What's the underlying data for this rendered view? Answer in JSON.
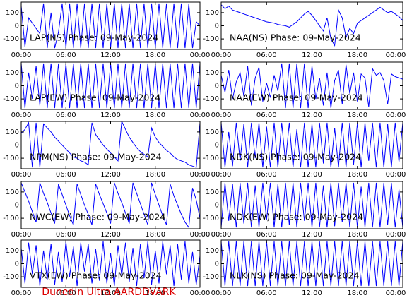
{
  "charts": [
    {
      "type": "line",
      "title": "LAP(NS) Phase: 09-May-2024",
      "color": "#0000ff",
      "xlim": [
        0,
        24
      ],
      "ylim": [
        -180,
        180
      ],
      "xticks": [
        {
          "value": 0,
          "label": "00:00"
        },
        {
          "value": 6,
          "label": "06:00"
        },
        {
          "value": 12,
          "label": "12:00"
        },
        {
          "value": 18,
          "label": "18:00"
        },
        {
          "value": 24,
          "label": "00:00"
        }
      ],
      "yticks": [
        -100,
        0,
        100
      ],
      "x": [
        0,
        0.5,
        1,
        1.5,
        2,
        2.5,
        3,
        3.5,
        4,
        4.5,
        5,
        5.5,
        6,
        6.5,
        7,
        7.5,
        8,
        8.5,
        9,
        9.5,
        10,
        10.5,
        11,
        11.5,
        12,
        12.5,
        13,
        13.5,
        14,
        14.5,
        15,
        15.5,
        16,
        16.5,
        17,
        17.5,
        18,
        18.5,
        19,
        19.5,
        20,
        20.5,
        21,
        21.5,
        22,
        22.5,
        23,
        23.5,
        24
      ],
      "values": [
        150,
        -160,
        60,
        20,
        -20,
        -60,
        170,
        -170,
        100,
        -170,
        -50,
        170,
        -170,
        170,
        -170,
        170,
        -170,
        170,
        -170,
        170,
        -170,
        170,
        -170,
        170,
        -170,
        170,
        -170,
        170,
        -170,
        170,
        -170,
        170,
        -170,
        170,
        -170,
        170,
        -170,
        170,
        -170,
        170,
        -170,
        170,
        -170,
        170,
        -170,
        170,
        -170,
        30,
        0
      ]
    },
    {
      "type": "line",
      "title": "NAA(NS) Phase: 09-May-2024",
      "color": "#0000ff",
      "xlim": [
        0,
        24
      ],
      "ylim": [
        -180,
        180
      ],
      "xticks": [
        {
          "value": 0,
          "label": "00:00"
        },
        {
          "value": 6,
          "label": "06:00"
        },
        {
          "value": 12,
          "label": "12:00"
        },
        {
          "value": 18,
          "label": "18:00"
        },
        {
          "value": 24,
          "label": "00:00"
        }
      ],
      "yticks": [
        -100,
        0,
        100
      ],
      "x": [
        0,
        0.5,
        1,
        1.5,
        2,
        2.5,
        3,
        3.5,
        4,
        4.5,
        5,
        5.5,
        6,
        6.5,
        7,
        7.5,
        8,
        8.5,
        9,
        9.5,
        10,
        10.5,
        11,
        11.5,
        12,
        12.5,
        13,
        13.5,
        14,
        14.5,
        15,
        15.5,
        16,
        16.5,
        17,
        17.5,
        18,
        18.5,
        19,
        19.5,
        20,
        20.5,
        21,
        21.5,
        22,
        22.5,
        23,
        23.5,
        24
      ],
      "values": [
        160,
        130,
        150,
        120,
        110,
        100,
        90,
        80,
        70,
        60,
        50,
        40,
        30,
        25,
        20,
        10,
        5,
        0,
        -10,
        10,
        30,
        60,
        90,
        110,
        80,
        40,
        0,
        -40,
        60,
        -100,
        -150,
        120,
        60,
        -90,
        -20,
        -60,
        20,
        40,
        60,
        80,
        100,
        120,
        140,
        120,
        100,
        110,
        90,
        70,
        40
      ]
    },
    {
      "type": "line",
      "title": "LAP(EW) Phase: 09-May-2024",
      "color": "#0000ff",
      "xlim": [
        0,
        24
      ],
      "ylim": [
        -180,
        180
      ],
      "xticks": [
        {
          "value": 0,
          "label": "00:00"
        },
        {
          "value": 6,
          "label": "06:00"
        },
        {
          "value": 12,
          "label": "12:00"
        },
        {
          "value": 18,
          "label": "18:00"
        },
        {
          "value": 24,
          "label": "00:00"
        }
      ],
      "yticks": [
        -100,
        0,
        100
      ],
      "x": [
        0,
        0.5,
        1,
        1.5,
        2,
        2.5,
        3,
        3.5,
        4,
        4.5,
        5,
        5.5,
        6,
        6.5,
        7,
        7.5,
        8,
        8.5,
        9,
        9.5,
        10,
        10.5,
        11,
        11.5,
        12,
        12.5,
        13,
        13.5,
        14,
        14.5,
        15,
        15.5,
        16,
        16.5,
        17,
        17.5,
        18,
        18.5,
        19,
        19.5,
        20,
        20.5,
        21,
        21.5,
        22,
        22.5,
        23,
        23.5,
        24
      ],
      "values": [
        170,
        -170,
        100,
        -100,
        150,
        -150,
        170,
        -170,
        170,
        -170,
        170,
        -170,
        170,
        -170,
        170,
        -170,
        170,
        -170,
        170,
        -170,
        170,
        -170,
        170,
        -170,
        170,
        -170,
        170,
        -170,
        170,
        -170,
        170,
        -170,
        170,
        -170,
        170,
        -170,
        170,
        -170,
        170,
        -170,
        170,
        -170,
        170,
        -170,
        170,
        -170,
        170,
        -170,
        170
      ]
    },
    {
      "type": "line",
      "title": "NAA(EW) Phase: 09-May-2024",
      "color": "#0000ff",
      "xlim": [
        0,
        24
      ],
      "ylim": [
        -180,
        180
      ],
      "xticks": [
        {
          "value": 0,
          "label": "00:00"
        },
        {
          "value": 6,
          "label": "06:00"
        },
        {
          "value": 12,
          "label": "12:00"
        },
        {
          "value": 18,
          "label": "18:00"
        },
        {
          "value": 24,
          "label": "00:00"
        }
      ],
      "yticks": [
        -100,
        0,
        100
      ],
      "x": [
        0,
        0.5,
        1,
        1.5,
        2,
        2.5,
        3,
        3.5,
        4,
        4.5,
        5,
        5.5,
        6,
        6.5,
        7,
        7.5,
        8,
        8.5,
        9,
        9.5,
        10,
        10.5,
        11,
        11.5,
        12,
        12.5,
        13,
        13.5,
        14,
        14.5,
        15,
        15.5,
        16,
        16.5,
        17,
        17.5,
        18,
        18.5,
        19,
        19.5,
        20,
        20.5,
        21,
        21.5,
        22,
        22.5,
        23,
        23.5,
        24
      ],
      "values": [
        80,
        -50,
        120,
        -100,
        30,
        100,
        -80,
        150,
        -150,
        60,
        140,
        -120,
        20,
        -90,
        80,
        -40,
        170,
        -170,
        170,
        -170,
        170,
        -170,
        170,
        -170,
        150,
        -100,
        60,
        -150,
        100,
        -170,
        40,
        120,
        -140,
        160,
        -60,
        100,
        -120,
        90,
        60,
        -160,
        130,
        80,
        100,
        40,
        -140,
        90,
        70,
        60,
        50
      ]
    },
    {
      "type": "line",
      "title": "NPM(NS) Phase: 09-May-2024",
      "color": "#0000ff",
      "xlim": [
        0,
        24
      ],
      "ylim": [
        -180,
        180
      ],
      "xticks": [
        {
          "value": 0,
          "label": "00:00"
        },
        {
          "value": 6,
          "label": "06:00"
        },
        {
          "value": 12,
          "label": "12:00"
        },
        {
          "value": 18,
          "label": "18:00"
        },
        {
          "value": 24,
          "label": "00:00"
        }
      ],
      "yticks": [
        -100,
        0,
        100
      ],
      "x": [
        0,
        0.5,
        1,
        1.5,
        2,
        2.5,
        3,
        3.5,
        4,
        4.5,
        5,
        5.5,
        6,
        6.5,
        7,
        7.5,
        8,
        8.5,
        9,
        9.5,
        10,
        10.5,
        11,
        11.5,
        12,
        12.5,
        13,
        13.5,
        14,
        14.5,
        15,
        15.5,
        16,
        16.5,
        17,
        17.5,
        18,
        18.5,
        19,
        19.5,
        20,
        20.5,
        21,
        21.5,
        22,
        22.5,
        23,
        23.5,
        24
      ],
      "values": [
        90,
        120,
        170,
        -170,
        170,
        -170,
        160,
        130,
        100,
        60,
        30,
        0,
        -30,
        -60,
        -90,
        -100,
        -120,
        -130,
        -150,
        170,
        80,
        40,
        0,
        -30,
        -60,
        -90,
        -120,
        180,
        120,
        60,
        20,
        -20,
        -50,
        -70,
        -90,
        130,
        60,
        20,
        -10,
        -40,
        -60,
        -90,
        -110,
        -120,
        -130,
        -150,
        -160,
        -170,
        170
      ]
    },
    {
      "type": "line",
      "title": "NDK(NS) Phase: 09-May-2024",
      "color": "#0000ff",
      "xlim": [
        0,
        24
      ],
      "ylim": [
        -180,
        180
      ],
      "xticks": [
        {
          "value": 0,
          "label": "00:00"
        },
        {
          "value": 6,
          "label": "06:00"
        },
        {
          "value": 12,
          "label": "12:00"
        },
        {
          "value": 18,
          "label": "18:00"
        },
        {
          "value": 24,
          "label": "00:00"
        }
      ],
      "yticks": [
        -100,
        0,
        100
      ],
      "x": [
        0,
        0.5,
        1,
        1.5,
        2,
        2.5,
        3,
        3.5,
        4,
        4.5,
        5,
        5.5,
        6,
        6.5,
        7,
        7.5,
        8,
        8.5,
        9,
        9.5,
        10,
        10.5,
        11,
        11.5,
        12,
        12.5,
        13,
        13.5,
        14,
        14.5,
        15,
        15.5,
        16,
        16.5,
        17,
        17.5,
        18,
        18.5,
        19,
        19.5,
        20,
        20.5,
        21,
        21.5,
        22,
        22.5,
        23,
        23.5,
        24
      ],
      "values": [
        170,
        -170,
        100,
        -160,
        170,
        -120,
        160,
        -170,
        170,
        -100,
        170,
        -170,
        140,
        -170,
        170,
        -170,
        170,
        -130,
        170,
        -170,
        120,
        -170,
        170,
        -170,
        160,
        -170,
        170,
        -140,
        170,
        -170,
        130,
        -170,
        170,
        -170,
        170,
        -150,
        170,
        -170,
        170,
        -120,
        170,
        -170,
        170,
        -170,
        160,
        -170,
        170,
        -130,
        170
      ]
    },
    {
      "type": "line",
      "title": "NWC(EW) Phase: 09-May-2024",
      "color": "#0000ff",
      "xlim": [
        0,
        24
      ],
      "ylim": [
        -180,
        180
      ],
      "xticks": [
        {
          "value": 0,
          "label": "00:00"
        },
        {
          "value": 6,
          "label": "06:00"
        },
        {
          "value": 12,
          "label": "12:00"
        },
        {
          "value": 18,
          "label": "18:00"
        },
        {
          "value": 24,
          "label": "00:00"
        }
      ],
      "yticks": [
        -100,
        0,
        100
      ],
      "x": [
        0,
        0.5,
        1,
        1.5,
        2,
        2.5,
        3,
        3.5,
        4,
        4.5,
        5,
        5.5,
        6,
        6.5,
        7,
        7.5,
        8,
        8.5,
        9,
        9.5,
        10,
        10.5,
        11,
        11.5,
        12,
        12.5,
        13,
        13.5,
        14,
        14.5,
        15,
        15.5,
        16,
        16.5,
        17,
        17.5,
        18,
        18.5,
        19,
        19.5,
        20,
        20.5,
        21,
        21.5,
        22,
        22.5,
        23,
        23.5,
        24
      ],
      "values": [
        170,
        100,
        30,
        -50,
        -130,
        170,
        90,
        20,
        -60,
        -140,
        160,
        80,
        0,
        -80,
        -150,
        160,
        80,
        0,
        -70,
        -150,
        160,
        80,
        10,
        -60,
        -140,
        170,
        90,
        20,
        -60,
        -140,
        170,
        90,
        10,
        -70,
        -150,
        170,
        80,
        0,
        -80,
        -150,
        160,
        70,
        0,
        -70,
        -130,
        -170,
        130,
        40,
        -100
      ]
    },
    {
      "type": "line",
      "title": "NDK(EW) Phase: 09-May-2024",
      "color": "#0000ff",
      "xlim": [
        0,
        24
      ],
      "ylim": [
        -180,
        180
      ],
      "xticks": [
        {
          "value": 0,
          "label": "00:00"
        },
        {
          "value": 6,
          "label": "06:00"
        },
        {
          "value": 12,
          "label": "12:00"
        },
        {
          "value": 18,
          "label": "18:00"
        },
        {
          "value": 24,
          "label": "00:00"
        }
      ],
      "yticks": [
        -100,
        0,
        100
      ],
      "x": [
        0,
        0.5,
        1,
        1.5,
        2,
        2.5,
        3,
        3.5,
        4,
        4.5,
        5,
        5.5,
        6,
        6.5,
        7,
        7.5,
        8,
        8.5,
        9,
        9.5,
        10,
        10.5,
        11,
        11.5,
        12,
        12.5,
        13,
        13.5,
        14,
        14.5,
        15,
        15.5,
        16,
        16.5,
        17,
        17.5,
        18,
        18.5,
        19,
        19.5,
        20,
        20.5,
        21,
        21.5,
        22,
        22.5,
        23,
        23.5,
        24
      ],
      "values": [
        -170,
        170,
        -120,
        160,
        -170,
        170,
        -140,
        170,
        -170,
        150,
        -170,
        170,
        -110,
        170,
        -170,
        160,
        -170,
        170,
        -150,
        170,
        -170,
        170,
        -120,
        170,
        -170,
        170,
        -170,
        150,
        -170,
        170,
        -160,
        170,
        -130,
        170,
        -170,
        170,
        -170,
        140,
        -170,
        170,
        -170,
        170,
        -170,
        170,
        -150,
        170,
        -170,
        120,
        -170
      ]
    },
    {
      "type": "line",
      "title": "VTX(EW) Phase: 09-May-2024",
      "color": "#0000ff",
      "xlim": [
        0,
        24
      ],
      "ylim": [
        -180,
        180
      ],
      "xticks": [
        {
          "value": 0,
          "label": "00:00"
        },
        {
          "value": 6,
          "label": "06:00"
        },
        {
          "value": 12,
          "label": "12:00"
        },
        {
          "value": 18,
          "label": "18:00"
        },
        {
          "value": 24,
          "label": "00:00"
        }
      ],
      "yticks": [
        -100,
        0,
        100
      ],
      "x": [
        0,
        0.5,
        1,
        1.5,
        2,
        2.5,
        3,
        3.5,
        4,
        4.5,
        5,
        5.5,
        6,
        6.5,
        7,
        7.5,
        8,
        8.5,
        9,
        9.5,
        10,
        10.5,
        11,
        11.5,
        12,
        12.5,
        13,
        13.5,
        14,
        14.5,
        15,
        15.5,
        16,
        16.5,
        17,
        17.5,
        18,
        18.5,
        19,
        19.5,
        20,
        20.5,
        21,
        21.5,
        22,
        22.5,
        23,
        23.5,
        24
      ],
      "values": [
        120,
        -150,
        160,
        -80,
        140,
        -170,
        100,
        -120,
        150,
        -160,
        90,
        -140,
        170,
        -100,
        130,
        -170,
        160,
        -60,
        150,
        -150,
        110,
        -130,
        170,
        -150,
        80,
        -170,
        140,
        -90,
        160,
        -140,
        120,
        -170,
        150,
        -110,
        170,
        -160,
        100,
        -150,
        170,
        -80,
        140,
        -170,
        150,
        -120,
        170,
        -150,
        90,
        -160,
        60
      ]
    },
    {
      "type": "line",
      "title": "NLK(NS) Phase: 09-May-2024",
      "color": "#0000ff",
      "xlim": [
        0,
        24
      ],
      "ylim": [
        -180,
        180
      ],
      "xticks": [
        {
          "value": 0,
          "label": "00:00"
        },
        {
          "value": 6,
          "label": "06:00"
        },
        {
          "value": 12,
          "label": "12:00"
        },
        {
          "value": 18,
          "label": "18:00"
        },
        {
          "value": 24,
          "label": "00:00"
        }
      ],
      "yticks": [
        -100,
        0,
        100
      ],
      "x": [
        0,
        0.5,
        1,
        1.5,
        2,
        2.5,
        3,
        3.5,
        4,
        4.5,
        5,
        5.5,
        6,
        6.5,
        7,
        7.5,
        8,
        8.5,
        9,
        9.5,
        10,
        10.5,
        11,
        11.5,
        12,
        12.5,
        13,
        13.5,
        14,
        14.5,
        15,
        15.5,
        16,
        16.5,
        17,
        17.5,
        18,
        18.5,
        19,
        19.5,
        20,
        20.5,
        21,
        21.5,
        22,
        22.5,
        23,
        23.5,
        24
      ],
      "values": [
        170,
        -170,
        170,
        -170,
        170,
        -170,
        170,
        -170,
        170,
        -170,
        170,
        -170,
        170,
        -170,
        170,
        -170,
        170,
        -170,
        170,
        -170,
        170,
        -170,
        170,
        -170,
        170,
        -170,
        170,
        -170,
        170,
        -170,
        170,
        -170,
        170,
        -170,
        170,
        -170,
        170,
        -170,
        170,
        -170,
        170,
        -170,
        170,
        -170,
        170,
        -170,
        170,
        -170,
        170
      ]
    }
  ],
  "footer": "Dunedin Ultra AARDDVARK"
}
